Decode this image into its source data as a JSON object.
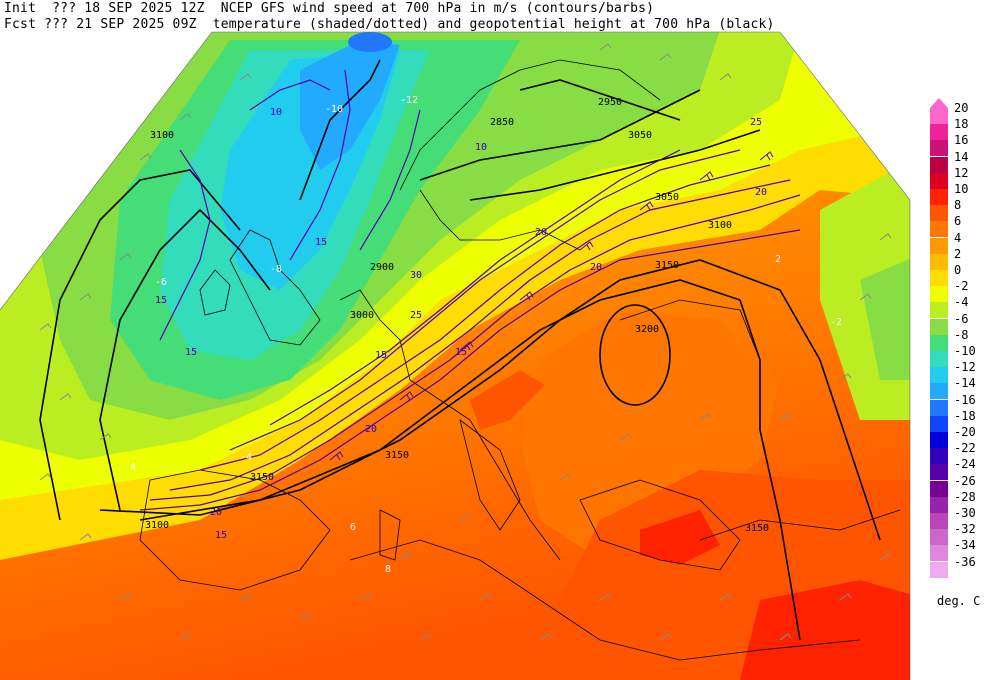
{
  "header": {
    "line1": "Init  ??? 18 SEP 2025 12Z  NCEP GFS wind speed at 700 hPa in m/s (contours/barbs)",
    "line2": "Fcst ??? 21 SEP 2025 09Z  temperature (shaded/dotted) and geopotential height at 700 hPa (black)"
  },
  "legend": {
    "units": "deg. C",
    "items": [
      {
        "label": "20",
        "color": "#ff66cc"
      },
      {
        "label": "18",
        "color": "#ee2299"
      },
      {
        "label": "16",
        "color": "#cc1177"
      },
      {
        "label": "14",
        "color": "#bb0044"
      },
      {
        "label": "12",
        "color": "#dd0022"
      },
      {
        "label": "10",
        "color": "#ff2200"
      },
      {
        "label": "8",
        "color": "#ff5500"
      },
      {
        "label": "6",
        "color": "#ff7700"
      },
      {
        "label": "4",
        "color": "#ff9900"
      },
      {
        "label": "2",
        "color": "#ffbb00"
      },
      {
        "label": "0",
        "color": "#ffdd00"
      },
      {
        "label": "-2",
        "color": "#eeff00"
      },
      {
        "label": "-4",
        "color": "#bbee22"
      },
      {
        "label": "-6",
        "color": "#88dd44"
      },
      {
        "label": "-8",
        "color": "#44dd77"
      },
      {
        "label": "-10",
        "color": "#33ddbb"
      },
      {
        "label": "-12",
        "color": "#22ccee"
      },
      {
        "label": "-14",
        "color": "#22aaff"
      },
      {
        "label": "-16",
        "color": "#2277ff"
      },
      {
        "label": "-18",
        "color": "#1144ff"
      },
      {
        "label": "-20",
        "color": "#0000dd"
      },
      {
        "label": "-22",
        "color": "#3300bb"
      },
      {
        "label": "-24",
        "color": "#5500aa"
      },
      {
        "label": "-26",
        "color": "#770099"
      },
      {
        "label": "-28",
        "color": "#9922aa"
      },
      {
        "label": "-30",
        "color": "#bb44bb"
      },
      {
        "label": "-32",
        "color": "#cc66cc"
      },
      {
        "label": "-34",
        "color": "#dd88dd"
      },
      {
        "label": "-36",
        "color": "#eeaaee"
      }
    ]
  },
  "map": {
    "height_labels": [
      "3100",
      "3100",
      "3150",
      "3150",
      "3150",
      "3150",
      "3200",
      "3050",
      "2950",
      "2900",
      "2850",
      "3050",
      "3000",
      "3100"
    ],
    "wind_labels": [
      "15",
      "15",
      "15",
      "15",
      "15",
      "15",
      "20",
      "20",
      "20",
      "20",
      "20",
      "25",
      "25",
      "30",
      "10",
      "10"
    ],
    "temp_labels": [
      "-4",
      "-6",
      "-8",
      "-10",
      "-12",
      "-2",
      "2",
      "4",
      "6",
      "8"
    ]
  }
}
